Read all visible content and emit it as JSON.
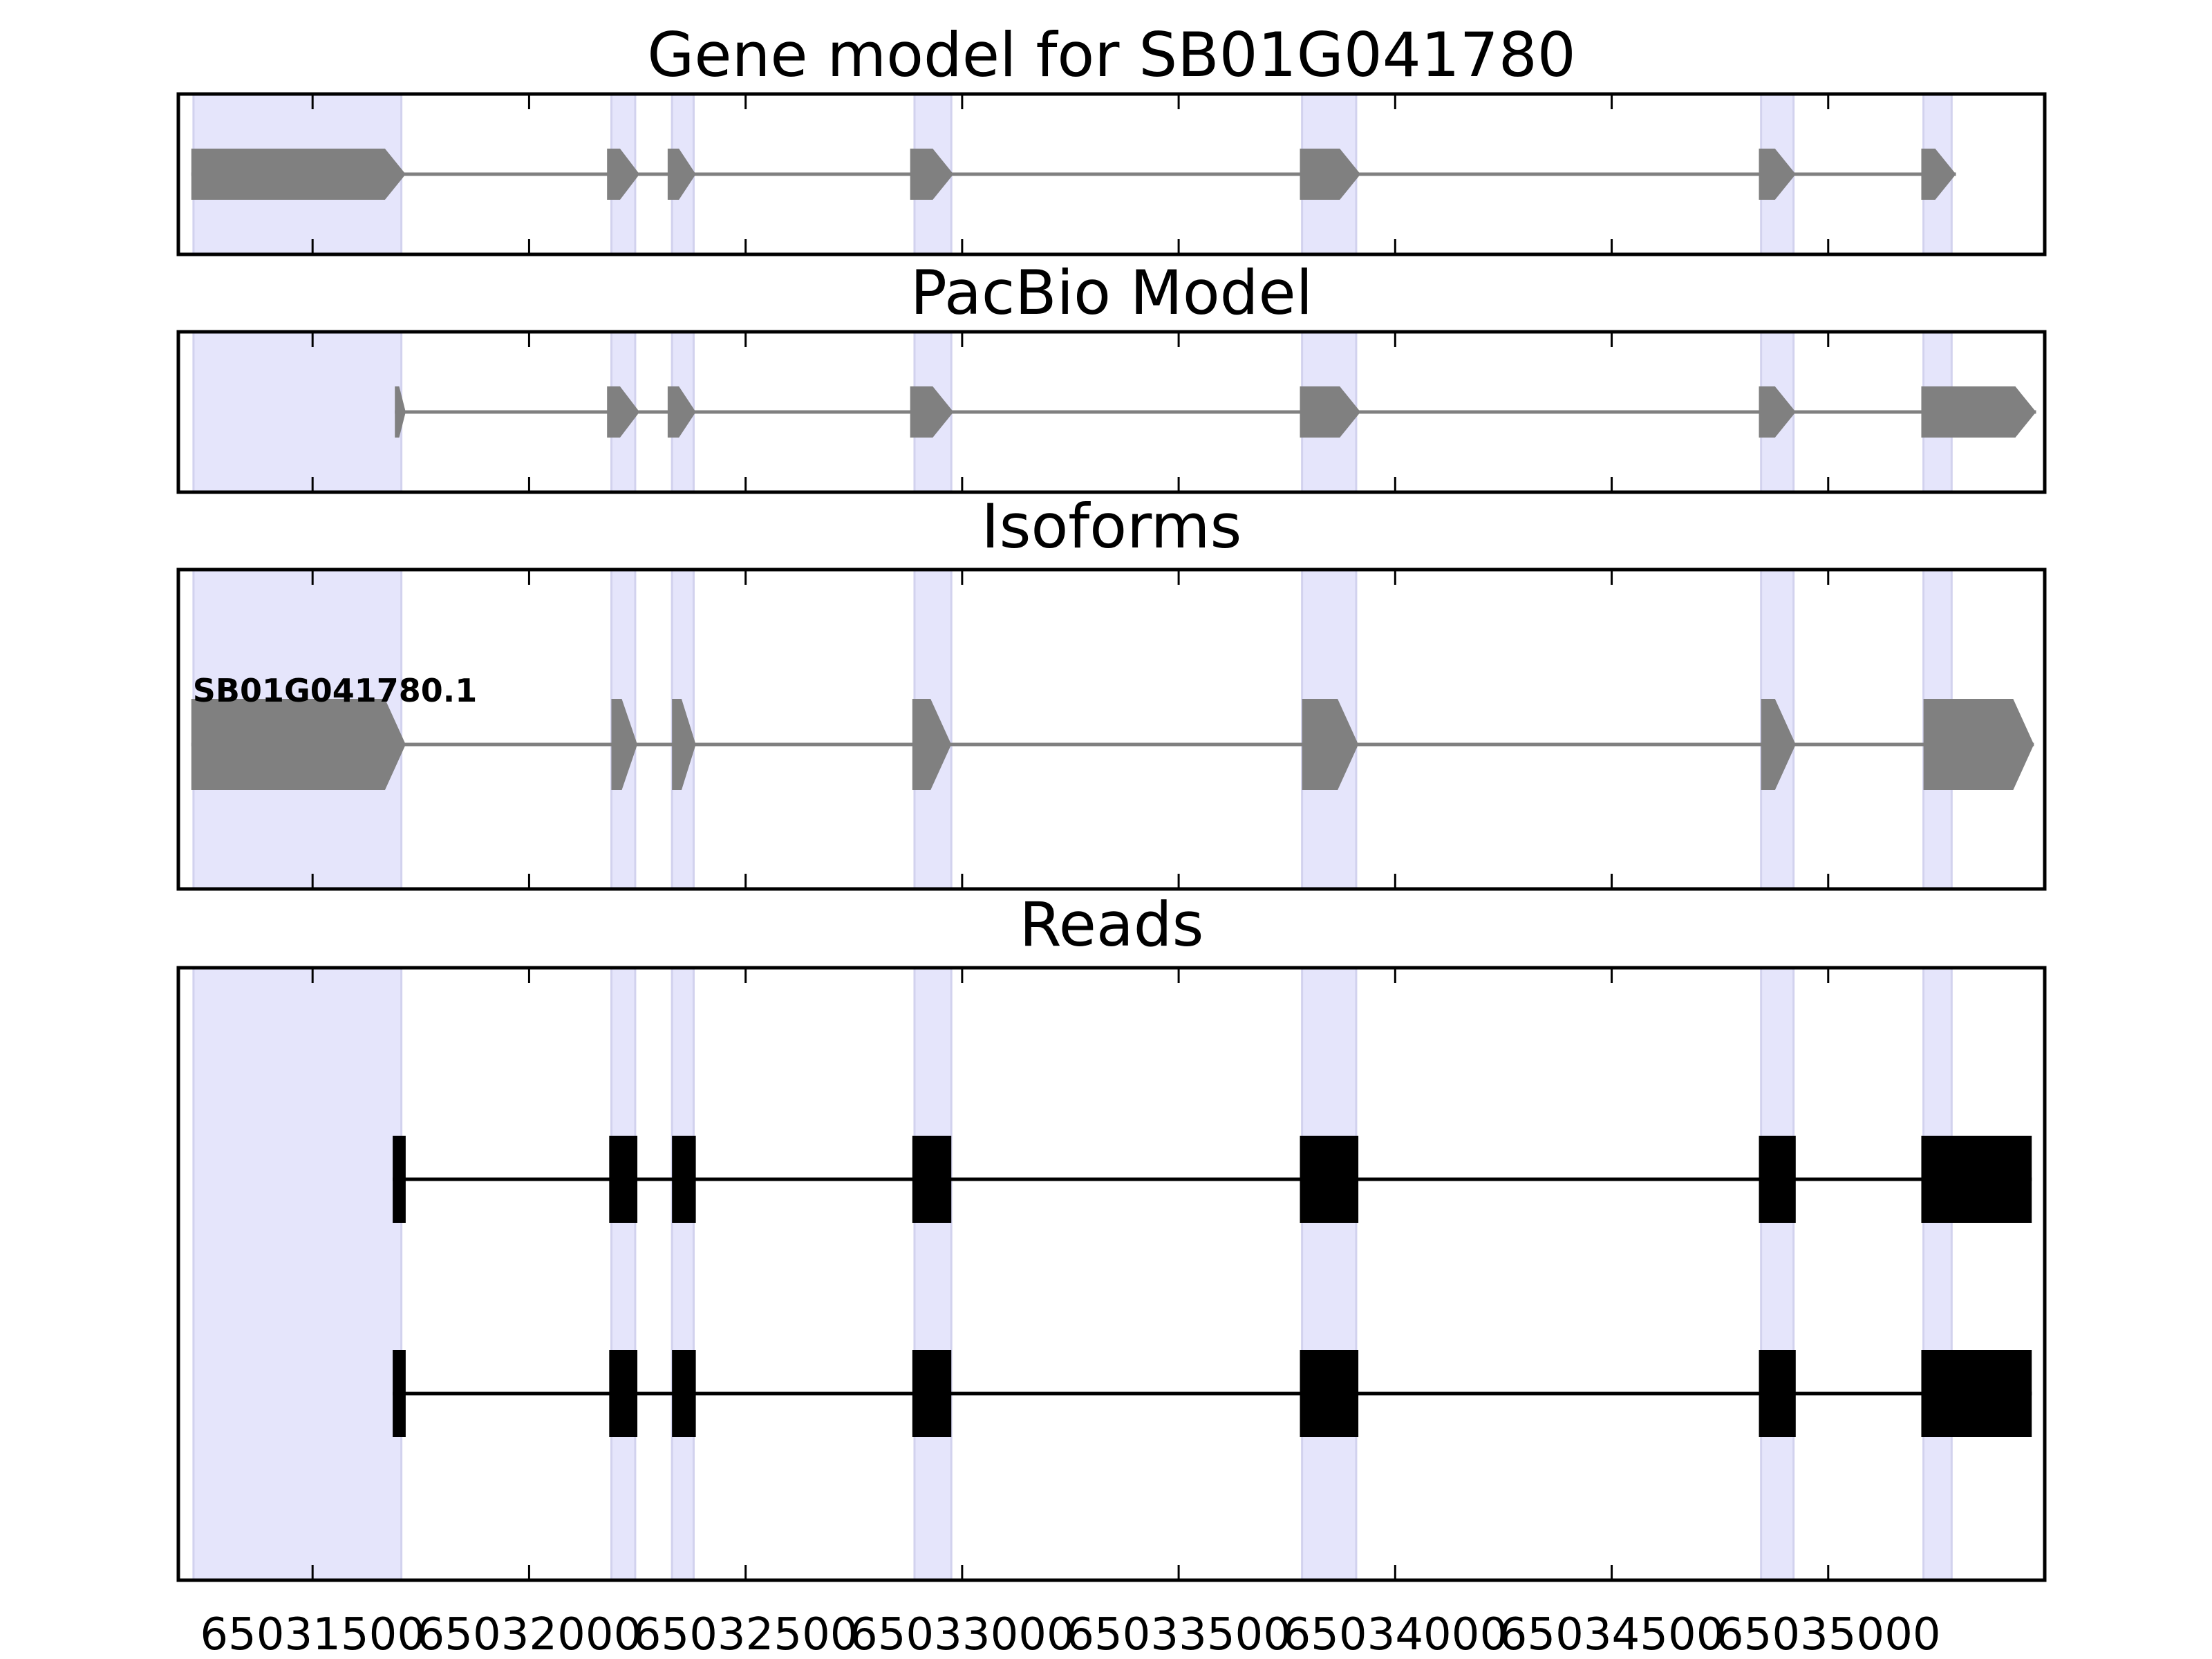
{
  "chart_data": {
    "type": "gene-structure",
    "xlim": [
      65031190,
      65035500
    ],
    "xticks": [
      65031500,
      65032000,
      65032500,
      65033000,
      65033500,
      65034000,
      65034500,
      65035000
    ],
    "xtick_labels": [
      "65031500",
      "65032000",
      "65032500",
      "65033000",
      "65033500",
      "65034000",
      "65034500",
      "65035000"
    ],
    "highlight_regions": [
      [
        65031225,
        65031705
      ],
      [
        65032190,
        65032245
      ],
      [
        65032330,
        65032380
      ],
      [
        65032890,
        65032975
      ],
      [
        65033785,
        65033910
      ],
      [
        65034845,
        65034920
      ],
      [
        65035220,
        65035285
      ]
    ],
    "panels": [
      {
        "title": "Gene model for SB01G041780",
        "kind": "model",
        "color": "#808080",
        "strand": "+",
        "exons": [
          [
            65031220,
            65031715
          ],
          [
            65032180,
            65032255
          ],
          [
            65032320,
            65032385
          ],
          [
            65032880,
            65032980
          ],
          [
            65033780,
            65033920
          ],
          [
            65034840,
            65034925
          ],
          [
            65035215,
            65035295
          ]
        ]
      },
      {
        "title": "PacBio Model",
        "kind": "model",
        "color": "#808080",
        "strand": "+",
        "exons": [
          [
            65031690,
            65031715
          ],
          [
            65032180,
            65032255
          ],
          [
            65032320,
            65032385
          ],
          [
            65032880,
            65032980
          ],
          [
            65033780,
            65033920
          ],
          [
            65034840,
            65034925
          ],
          [
            65035215,
            65035480
          ]
        ]
      },
      {
        "title": "Isoforms",
        "kind": "isoforms",
        "color": "#808080",
        "isoforms": [
          {
            "name": "SB01G041780.1",
            "strand": "+",
            "exons": [
              [
                65031220,
                65031715
              ],
              [
                65032190,
                65032250
              ],
              [
                65032330,
                65032385
              ],
              [
                65032885,
                65032975
              ],
              [
                65033785,
                65033915
              ],
              [
                65034845,
                65034925
              ],
              [
                65035220,
                65035475
              ]
            ]
          }
        ]
      },
      {
        "title": "Reads",
        "kind": "reads",
        "color": "#000000",
        "reads": [
          {
            "exons": [
              [
                65031685,
                65031715
              ],
              [
                65032185,
                65032250
              ],
              [
                65032330,
                65032385
              ],
              [
                65032885,
                65032975
              ],
              [
                65033780,
                65033915
              ],
              [
                65034840,
                65034925
              ],
              [
                65035215,
                65035470
              ]
            ]
          },
          {
            "exons": [
              [
                65031685,
                65031715
              ],
              [
                65032185,
                65032250
              ],
              [
                65032330,
                65032385
              ],
              [
                65032885,
                65032975
              ],
              [
                65033780,
                65033915
              ],
              [
                65034840,
                65034925
              ],
              [
                65035215,
                65035470
              ]
            ]
          }
        ]
      }
    ],
    "highlight_color": "#e5e5fb",
    "grid": false,
    "legend": "none"
  }
}
